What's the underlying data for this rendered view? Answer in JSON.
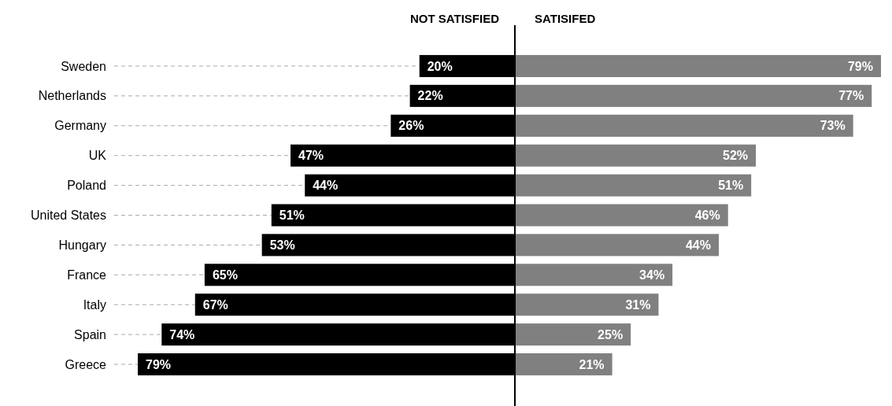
{
  "chart_data": [
    {
      "type": "bar",
      "orientation": "horizontal",
      "title": "NOT SATISFIED",
      "color": "#000000",
      "grid": "y",
      "tick_labels": "y",
      "categories": [
        "Sweden",
        "Netherlands",
        "Germany",
        "UK",
        "Poland",
        "United States",
        "Hungary",
        "France",
        "Italy",
        "Spain",
        "Greece"
      ],
      "values": [
        20,
        22,
        26,
        47,
        44,
        51,
        53,
        65,
        67,
        74,
        79
      ],
      "value_labels": [
        "20%",
        "22%",
        "26%",
        "47%",
        "44%",
        "51%",
        "53%",
        "65%",
        "67%",
        "74%",
        "79%"
      ]
    },
    {
      "type": "bar",
      "orientation": "horizontal",
      "title": "SATISIFED",
      "color": "#808080",
      "tick_labels": false,
      "categories": [
        null,
        null,
        null,
        null,
        null,
        null,
        null,
        null,
        null,
        null,
        null
      ],
      "values": [
        79,
        77,
        73,
        52,
        51,
        46,
        44,
        34,
        31,
        25,
        21
      ],
      "value_labels": [
        "79%",
        "77%",
        "73%",
        "52%",
        "51%",
        "46%",
        "44%",
        "34%",
        "31%",
        "25%",
        "21%"
      ]
    }
  ]
}
